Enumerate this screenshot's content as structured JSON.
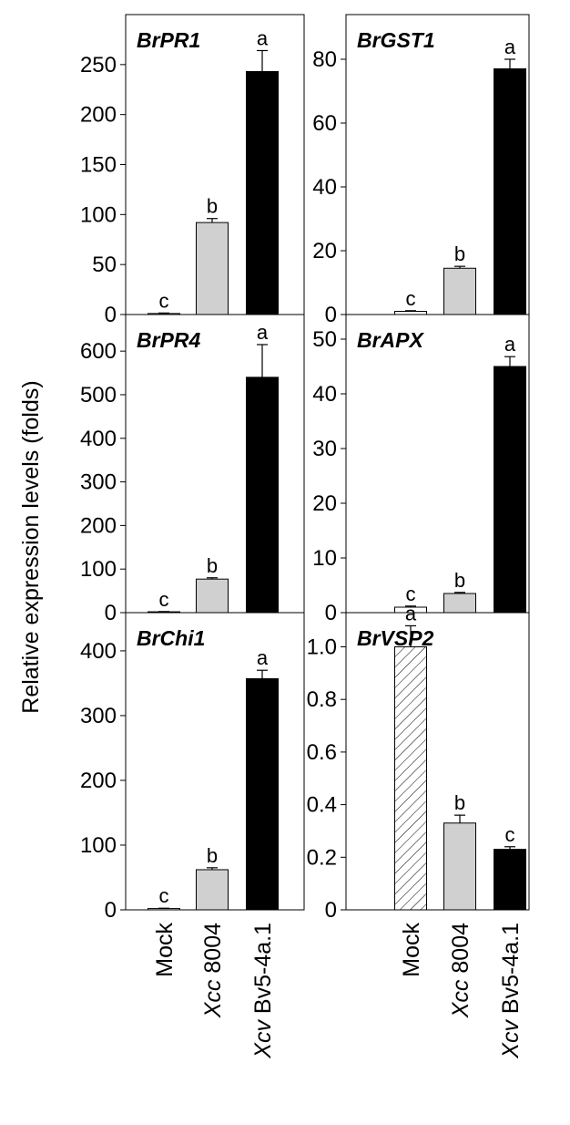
{
  "ylabel": "Relative expression levels (folds)",
  "categories": [
    "Mock",
    "Xcc 8004",
    "Xcv Bv5-4a.1"
  ],
  "chart_data": [
    {
      "type": "bar",
      "title": "BrPR1",
      "values": [
        1,
        92,
        243
      ],
      "error": [
        0.5,
        4,
        21
      ],
      "annotations": [
        "c",
        "b",
        "a"
      ],
      "colors": [
        "#ffffff",
        "#d0d0d0",
        "#000000"
      ],
      "ylim": [
        0,
        300
      ],
      "yticks": [
        0,
        50,
        100,
        150,
        200,
        250
      ]
    },
    {
      "type": "bar",
      "title": "BrGST1",
      "values": [
        1,
        14.5,
        77
      ],
      "error": [
        0.2,
        0.6,
        3
      ],
      "annotations": [
        "c",
        "b",
        "a"
      ],
      "colors": [
        "#ffffff",
        "#d0d0d0",
        "#000000"
      ],
      "ylim": [
        0,
        94
      ],
      "yticks": [
        0,
        20,
        40,
        60,
        80
      ]
    },
    {
      "type": "bar",
      "title": "BrPR4",
      "values": [
        2,
        77,
        540
      ],
      "error": [
        0.5,
        3,
        75
      ],
      "annotations": [
        "c",
        "b",
        "a"
      ],
      "colors": [
        "#ffffff",
        "#d0d0d0",
        "#000000"
      ],
      "ylim": [
        0,
        684
      ],
      "yticks": [
        0,
        100,
        200,
        300,
        400,
        500,
        600
      ]
    },
    {
      "type": "bar",
      "title": "BrAPX",
      "values": [
        1,
        3.5,
        45
      ],
      "error": [
        0.2,
        0.2,
        1.8
      ],
      "annotations": [
        "c",
        "b",
        "a"
      ],
      "colors": [
        "#ffffff",
        "#d0d0d0",
        "#000000"
      ],
      "ylim": [
        0,
        54.5
      ],
      "yticks": [
        0,
        10,
        20,
        30,
        40,
        50
      ]
    },
    {
      "type": "bar",
      "title": "BrChi1",
      "values": [
        2,
        62,
        357
      ],
      "error": [
        0.5,
        3,
        13
      ],
      "annotations": [
        "c",
        "b",
        "a"
      ],
      "colors": [
        "#ffffff",
        "#d0d0d0",
        "#000000"
      ],
      "ylim": [
        0,
        459
      ],
      "yticks": [
        0,
        100,
        200,
        300,
        400
      ]
    },
    {
      "type": "bar",
      "title": "BrVSP2",
      "values": [
        1.0,
        0.33,
        0.23
      ],
      "error": [
        0.08,
        0.03,
        0.01
      ],
      "annotations": [
        "a",
        "b",
        "c"
      ],
      "colors": [
        "#ffffff",
        "#d0d0d0",
        "#000000"
      ],
      "hatch": [
        true,
        false,
        false
      ],
      "ylim": [
        0,
        1.13
      ],
      "yticks": [
        0,
        {
          "value": 0.2,
          "label": "0.2"
        },
        {
          "value": 0.4,
          "label": "0.4"
        },
        {
          "value": 0.6,
          "label": "0.6"
        },
        {
          "value": 0.8,
          "label": "0.8"
        },
        {
          "value": 1.0,
          "label": "1.0"
        }
      ]
    }
  ]
}
